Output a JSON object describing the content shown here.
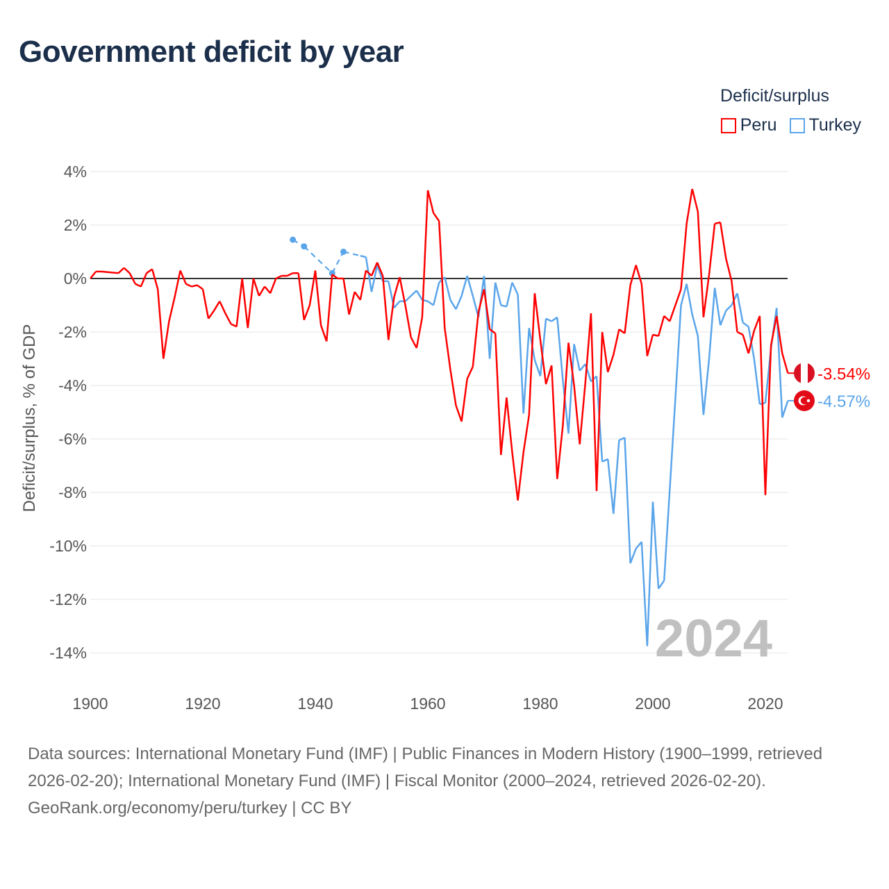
{
  "title": "Government deficit by year",
  "legend_title": "Deficit/surplus",
  "footer": {
    "sources": "Data sources: International Monetary Fund (IMF) | Public Finances in Modern History (1900–1999, retrieved 2026-02-20); International Monetary Fund (IMF) | Fiscal Monitor (2000–2024, retrieved 2026-02-20).",
    "credit": "GeoRank.org/economy/peru/turkey | CC BY"
  },
  "colors": {
    "peru": "#ff0000",
    "turkey": "#5aa5ea",
    "zero": "#333333",
    "grid": "#e6e6e6",
    "year": "#c0c0c0"
  },
  "chart_data": {
    "type": "line",
    "title": "Government deficit by year",
    "xlabel": "",
    "ylabel": "Deficit/surplus, % of GDP",
    "xlim": [
      1900,
      2024
    ],
    "ylim": [
      -15,
      4
    ],
    "grid": true,
    "legend_position": "top-right",
    "current_year_label": "2024",
    "x_ticks": [
      1900,
      1920,
      1940,
      1960,
      1980,
      2000,
      2020
    ],
    "x_tick_labels": [
      "1900",
      "1920",
      "1940",
      "1960",
      "1980",
      "2000",
      "2020"
    ],
    "y_ticks": [
      4,
      2,
      0,
      -2,
      -4,
      -6,
      -8,
      -10,
      -12,
      -14
    ],
    "y_tick_labels": [
      "4%",
      "2%",
      "0%",
      "-2%",
      "-4%",
      "-6%",
      "-8%",
      "-10%",
      "-12%",
      "-14%"
    ],
    "series": [
      {
        "name": "Peru",
        "color": "#ff0000",
        "end_label": "-3.54%",
        "flag": "peru-flag",
        "start_year": 1900,
        "values": [
          0,
          0.26,
          0.26,
          0.24,
          0.22,
          0.2,
          0.4,
          0.2,
          -0.2,
          -0.3,
          0.2,
          0.35,
          -0.4,
          -3.0,
          -1.6,
          -0.7,
          0.3,
          -0.2,
          -0.3,
          -0.25,
          -0.4,
          -1.5,
          -1.2,
          -0.85,
          -1.3,
          -1.7,
          -1.8,
          0,
          -1.85,
          0,
          -0.65,
          -0.3,
          -0.55,
          0,
          0.1,
          0.1,
          0.2,
          0.2,
          -1.55,
          -1.0,
          0.3,
          -1.75,
          -2.35,
          0.15,
          0,
          0,
          -1.35,
          -0.5,
          -0.8,
          0.3,
          0.1,
          0.6,
          0.1,
          -2.3,
          -0.7,
          0.05,
          -1.0,
          -2.2,
          -2.6,
          -1.45,
          3.3,
          2.45,
          2.15,
          -1.85,
          -3.4,
          -4.75,
          -5.35,
          -3.75,
          -3.3,
          -1.25,
          -0.4,
          -1.9,
          -2.05,
          -6.6,
          -4.45,
          -6.5,
          -8.3,
          -6.5,
          -5.1,
          -0.55,
          -2.3,
          -3.95,
          -3.25,
          -7.5,
          -5.5,
          -2.4,
          -4.0,
          -6.2,
          -3.9,
          -1.3,
          -7.95,
          -2.0,
          -3.5,
          -2.85,
          -1.9,
          -2.05,
          -0.25,
          0.5,
          -0.2,
          -2.9,
          -2.1,
          -2.15,
          -1.4,
          -1.6,
          -1.0,
          -0.4,
          2.05,
          3.35,
          2.5,
          -1.45,
          0.15,
          2.05,
          2.1,
          0.75,
          -0.1,
          -2.0,
          -2.1,
          -2.8,
          -1.95,
          -1.4,
          -8.1,
          -2.5,
          -1.4,
          -2.8,
          -3.54
        ]
      },
      {
        "name": "Turkey",
        "color": "#5aa5ea",
        "end_label": "-4.57%",
        "flag": "turkey-flag",
        "start_year": 1936,
        "values": [
          1.45,
          null,
          1.2,
          null,
          null,
          null,
          null,
          0.2,
          null,
          1.0,
          null,
          null,
          0.85,
          0.8,
          -0.5,
          0.5,
          -0.1,
          -0.1,
          -1.1,
          -0.85,
          -0.85,
          -0.65,
          -0.45,
          -0.8,
          -0.85,
          -1.0,
          -0.15,
          0.05,
          -0.8,
          -1.15,
          -0.65,
          0.1,
          -0.65,
          -1.45,
          0.1,
          -3.0,
          -0.15,
          -1.0,
          -1.05,
          -0.15,
          -0.6,
          -5.05,
          -1.85,
          -3.05,
          -3.65,
          -1.5,
          -1.6,
          -1.45,
          -3.8,
          -5.8,
          -2.45,
          -3.45,
          -3.2,
          -3.85,
          -3.65,
          -6.85,
          -6.75,
          -8.8,
          -6.05,
          -5.95,
          -10.65,
          -10.1,
          -9.85,
          -13.75,
          -8.35,
          -11.6,
          -11.3,
          -7.9,
          -4.5,
          -1.0,
          -0.2,
          -1.35,
          -2.15,
          -5.1,
          -3.0,
          -0.35,
          -1.75,
          -1.2,
          -1.0,
          -0.55,
          -1.65,
          -1.8,
          -3.0,
          -4.7,
          -4.65,
          -2.6,
          -1.1,
          -5.2,
          -4.57
        ]
      }
    ]
  }
}
